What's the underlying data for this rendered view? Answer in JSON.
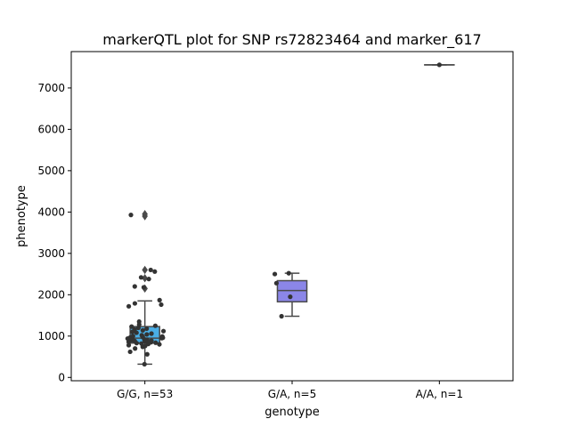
{
  "chart_data": {
    "type": "box",
    "title": "markerQTL plot for SNP rs72823464 and marker_617",
    "xlabel": "genotype",
    "ylabel": "phenotype",
    "categories": [
      "G/G, n=53",
      "G/A, n=5",
      "A/A, n=1"
    ],
    "ylim": [
      -80,
      7880
    ],
    "yticks": [
      0,
      1000,
      2000,
      3000,
      4000,
      5000,
      6000,
      7000
    ],
    "grid": false,
    "legend": "none",
    "boxes": [
      {
        "category": "G/G, n=53",
        "color": "#4aaee6",
        "whisker_low": 320,
        "q1": 830,
        "median": 950,
        "q3": 1230,
        "whisker_high": 1850,
        "fliers": [
          2150,
          2400,
          2600,
          3900,
          3950
        ]
      },
      {
        "category": "G/A, n=5",
        "color": "#8b86e8",
        "whisker_low": 1480,
        "q1": 1830,
        "median": 2100,
        "q3": 2340,
        "whisker_high": 2520,
        "fliers": []
      },
      {
        "category": "A/A, n=1",
        "color": "#f0a0a0",
        "whisker_low": 7560,
        "q1": 7560,
        "median": 7560,
        "q3": 7560,
        "whisker_high": 7560,
        "fliers": []
      }
    ],
    "points": [
      {
        "category": "G/G, n=53",
        "values": [
          320,
          560,
          620,
          700,
          740,
          760,
          780,
          800,
          810,
          820,
          830,
          840,
          850,
          860,
          870,
          880,
          890,
          900,
          910,
          920,
          930,
          940,
          950,
          960,
          970,
          980,
          990,
          1000,
          1020,
          1040,
          1060,
          1080,
          1100,
          1120,
          1140,
          1160,
          1180,
          1200,
          1230,
          1250,
          1280,
          1350,
          1720,
          1760,
          1790,
          1870,
          2180,
          2200,
          2380,
          2420,
          2560,
          2600,
          3930
        ]
      },
      {
        "category": "G/A, n=5",
        "values": [
          1480,
          1950,
          2280,
          2500,
          2520
        ]
      },
      {
        "category": "A/A, n=1",
        "values": [
          7560
        ]
      }
    ]
  }
}
